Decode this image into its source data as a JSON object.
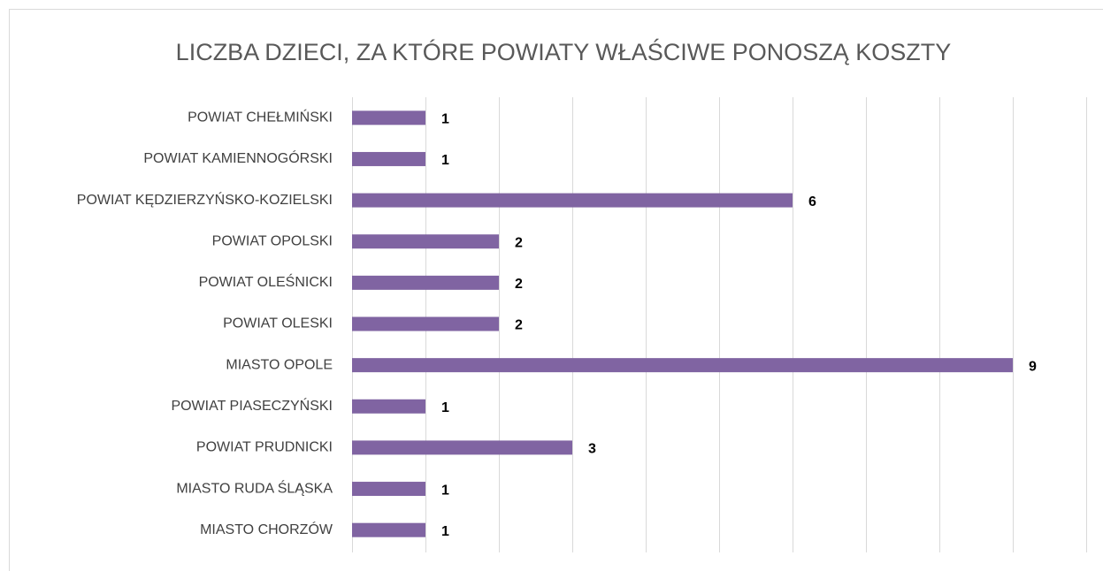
{
  "chart_data": {
    "type": "barh",
    "title": "LICZBA DZIECI, ZA KTÓRE POWIATY WŁAŚCIWE PONOSZĄ KOSZTY",
    "categories": [
      "POWIAT CHEŁMIŃSKI",
      "POWIAT KAMIENNOGÓRSKI",
      "POWIAT KĘDZIERZYŃSKO-KOZIELSKI",
      "POWIAT OPOLSKI",
      "POWIAT OLEŚNICKI",
      "POWIAT OLESKI",
      "MIASTO OPOLE",
      "POWIAT PIASECZYŃSKI",
      "POWIAT PRUDNICKI",
      "MIASTO RUDA ŚLĄSKA",
      "MIASTO CHORZÓW"
    ],
    "values": [
      1,
      1,
      6,
      2,
      2,
      2,
      9,
      1,
      3,
      1,
      1
    ],
    "color": "#8064a2",
    "xlim": [
      0,
      10
    ],
    "xticks": [
      0,
      1,
      2,
      3,
      4,
      5,
      6,
      7,
      8,
      9,
      10
    ],
    "grid": true
  }
}
